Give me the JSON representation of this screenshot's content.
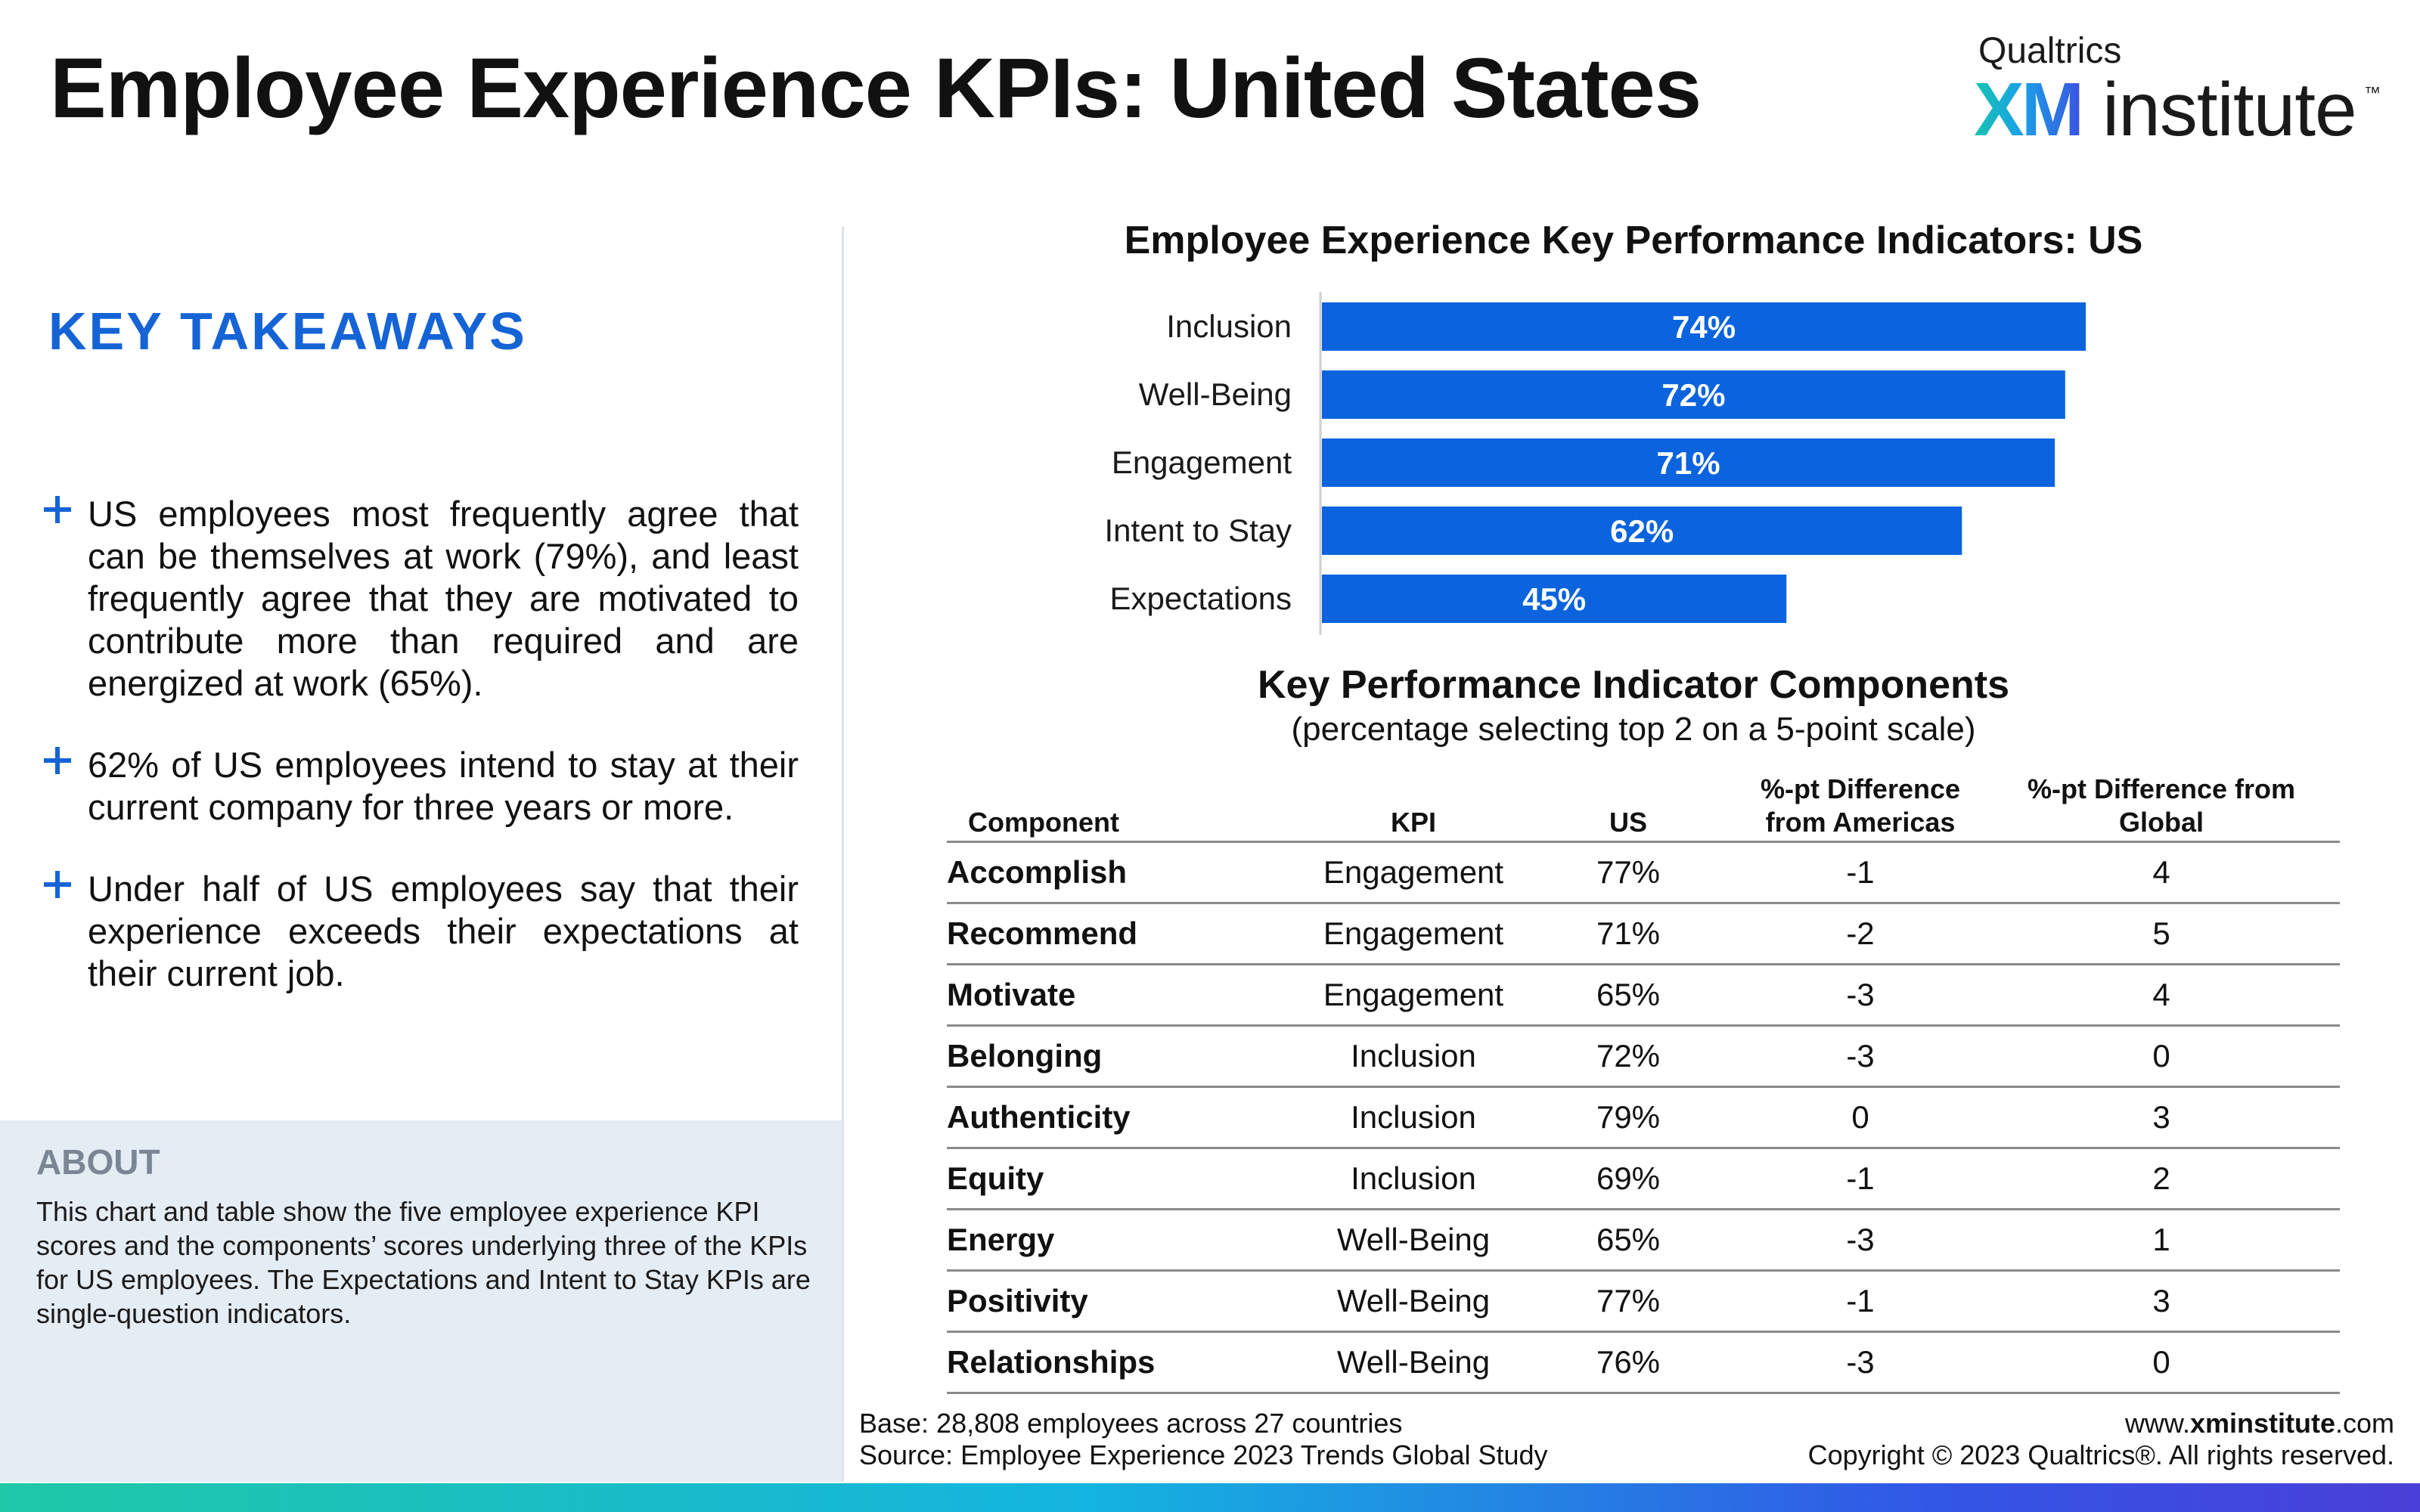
{
  "header": {
    "title": "Employee Experience KPIs: United States",
    "logo": {
      "brand": "Qualtrics",
      "xm": "XM",
      "institute": "institute",
      "tm": "™"
    }
  },
  "takeaways": {
    "title": "KEY TAKEAWAYS",
    "items": [
      "US employees most frequently agree that can be themselves at work (79%), and least frequently agree that they are motivated to contribute more than required and are energized at work (65%).",
      "62% of US employees intend to stay at their current company for three years or more.",
      "Under half of US employees say that their experience exceeds their expectations at their current job."
    ]
  },
  "about": {
    "title": "ABOUT",
    "text": "This chart and table show the five employee experience KPI scores and the components’ scores underlying three of the KPIs for US employees. The Expectations and Intent to Stay KPIs are single-question indicators."
  },
  "chart_data": [
    {
      "type": "bar",
      "orientation": "horizontal",
      "title": "Employee Experience Key Performance Indicators: US",
      "categories": [
        "Inclusion",
        "Well-Being",
        "Engagement",
        "Intent to Stay",
        "Expectations"
      ],
      "values": [
        74,
        72,
        71,
        62,
        45
      ],
      "value_labels": [
        "74%",
        "72%",
        "71%",
        "62%",
        "45%"
      ],
      "xlim": [
        0,
        100
      ],
      "grid": false,
      "color": "#0b64dd"
    },
    {
      "type": "table",
      "title": "Key Performance Indicator Components",
      "subtitle": "(percentage selecting top 2 on a 5-point scale)",
      "columns": [
        "Component",
        "KPI",
        "US",
        "%-pt Difference from Americas",
        "%-pt Difference from Global"
      ],
      "header_lines": [
        [
          "Component"
        ],
        [
          "KPI"
        ],
        [
          "US"
        ],
        [
          "%-pt Difference",
          "from Americas"
        ],
        [
          "%-pt Difference from",
          "Global"
        ]
      ],
      "rows": [
        [
          "Accomplish",
          "Engagement",
          "77%",
          "-1",
          "4"
        ],
        [
          "Recommend",
          "Engagement",
          "71%",
          "-2",
          "5"
        ],
        [
          "Motivate",
          "Engagement",
          "65%",
          "-3",
          "4"
        ],
        [
          "Belonging",
          "Inclusion",
          "72%",
          "-3",
          "0"
        ],
        [
          "Authenticity",
          "Inclusion",
          "79%",
          "0",
          "3"
        ],
        [
          "Equity",
          "Inclusion",
          "69%",
          "-1",
          "2"
        ],
        [
          "Energy",
          "Well-Being",
          "65%",
          "-3",
          "1"
        ],
        [
          "Positivity",
          "Well-Being",
          "77%",
          "-1",
          "3"
        ],
        [
          "Relationships",
          "Well-Being",
          "76%",
          "-3",
          "0"
        ]
      ]
    }
  ],
  "footer": {
    "base": "Base: 28,808 employees across 27 countries",
    "source": "Source: Employee Experience 2023 Trends Global Study",
    "url_prefix": "www.",
    "url_bold": "xminstitute",
    "url_suffix": ".com",
    "copyright": "Copyright © 2023 Qualtrics®. All rights reserved."
  },
  "colors": {
    "accent_blue": "#1564d6",
    "bar_blue": "#0b64dd",
    "about_bg": "#e4ecf4"
  }
}
